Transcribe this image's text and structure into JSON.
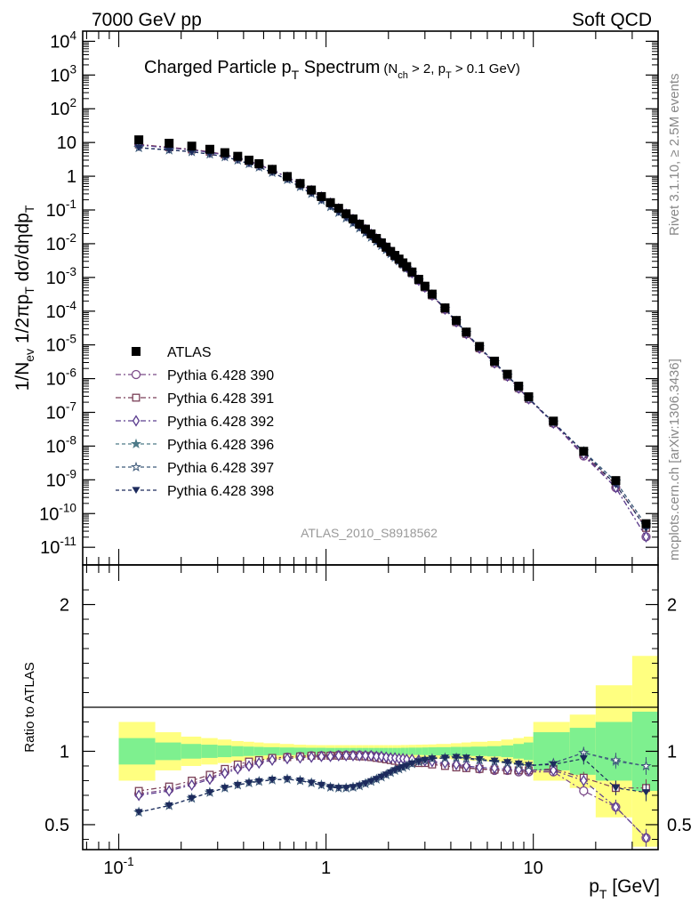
{
  "header": {
    "left": "7000 GeV pp",
    "right": "Soft QCD"
  },
  "side_texts": {
    "rivet": "Rivet 3.1.10, ≥ 2.5M events",
    "mcplots": "mcplots.cern.ch [arXiv:1306.3436]"
  },
  "colors": {
    "band_inner": "#7ef08f",
    "band_outer": "#ffff80",
    "data": "#000000",
    "p390": "#7b4a88",
    "p391": "#7a3f57",
    "p392": "#5b3d8f",
    "p396": "#4d7a88",
    "p397": "#3f5a7a",
    "p398": "#1c2a5c"
  },
  "chart_data": [
    {
      "type": "scatter",
      "title": "Charged Particle p_T Spectrum",
      "title_cut": "(N_ch > 2, p_T > 0.1 GeV)",
      "watermark": "ATLAS_2010_S8918562",
      "ylabel": "1/N_ev 1/2πp_T dσ/dηdp_T",
      "xscale": "log",
      "yscale": "log",
      "xlim": [
        0.067,
        40
      ],
      "ylim": [
        3e-12,
        20000
      ],
      "y_ticks": [
        {
          "v": 10000.0,
          "l": "10^4"
        },
        {
          "v": 1000.0,
          "l": "10^3"
        },
        {
          "v": 100.0,
          "l": "10^2"
        },
        {
          "v": 10,
          "l": "10"
        },
        {
          "v": 1,
          "l": "1"
        },
        {
          "v": 0.1,
          "l": "10^-1"
        },
        {
          "v": 0.01,
          "l": "10^-2"
        },
        {
          "v": 0.001,
          "l": "10^-3"
        },
        {
          "v": 0.0001,
          "l": "10^-4"
        },
        {
          "v": 1e-05,
          "l": "10^-5"
        },
        {
          "v": 1e-06,
          "l": "10^-6"
        },
        {
          "v": 1e-07,
          "l": "10^-7"
        },
        {
          "v": 1e-08,
          "l": "10^-8"
        },
        {
          "v": 1e-09,
          "l": "10^-9"
        },
        {
          "v": 1e-10,
          "l": "10^-10"
        },
        {
          "v": 1e-11,
          "l": "10^-11"
        }
      ],
      "x": [
        0.125,
        0.175,
        0.225,
        0.275,
        0.325,
        0.375,
        0.425,
        0.475,
        0.55,
        0.65,
        0.75,
        0.85,
        0.95,
        1.05,
        1.15,
        1.25,
        1.35,
        1.45,
        1.55,
        1.65,
        1.75,
        1.85,
        1.95,
        2.05,
        2.15,
        2.25,
        2.35,
        2.45,
        2.6,
        2.8,
        3.0,
        3.25,
        3.75,
        4.25,
        4.75,
        5.5,
        6.5,
        7.5,
        8.5,
        9.5,
        12.5,
        17.5,
        25,
        35
      ],
      "data_y": [
        12,
        9.5,
        7.8,
        6.3,
        5.0,
        3.9,
        3.0,
        2.35,
        1.6,
        0.98,
        0.61,
        0.39,
        0.25,
        0.165,
        0.112,
        0.077,
        0.054,
        0.038,
        0.027,
        0.0195,
        0.0143,
        0.0106,
        0.0079,
        0.0059,
        0.0045,
        0.0035,
        0.0027,
        0.0021,
        0.00145,
        0.00088,
        0.00055,
        0.00032,
        0.000125,
        5.3e-05,
        2.4e-05,
        9e-06,
        3.3e-06,
        1.35e-06,
        6e-07,
        2.9e-07,
        5.5e-08,
        7e-09,
        9.5e-10,
        5e-11
      ],
      "series": [
        {
          "name": "Pythia 6.428 390",
          "color": "#7b4a88",
          "marker": "circle-open",
          "dash": "6,3,2,3",
          "ratio": [
            0.71,
            0.74,
            0.78,
            0.82,
            0.86,
            0.89,
            0.91,
            0.93,
            0.95,
            0.96,
            0.965,
            0.97,
            0.97,
            0.97,
            0.975,
            0.975,
            0.975,
            0.975,
            0.97,
            0.97,
            0.965,
            0.96,
            0.955,
            0.95,
            0.945,
            0.94,
            0.935,
            0.93,
            0.93,
            0.93,
            0.925,
            0.92,
            0.91,
            0.9,
            0.89,
            0.88,
            0.87,
            0.87,
            0.86,
            0.86,
            0.86,
            0.73,
            0.62,
            0.41
          ],
          "err": [
            0,
            0,
            0,
            0,
            0,
            0,
            0,
            0,
            0,
            0,
            0,
            0,
            0,
            0,
            0,
            0,
            0,
            0,
            0,
            0,
            0,
            0,
            0,
            0,
            0,
            0,
            0,
            0,
            0,
            0,
            0,
            0,
            0,
            0,
            0,
            0,
            0,
            0,
            0,
            0.01,
            0.02,
            0.04,
            0.05,
            0.06
          ]
        },
        {
          "name": "Pythia 6.428 391",
          "color": "#7a3f57",
          "marker": "square-open",
          "dash": "6,3,2,3",
          "ratio": [
            0.73,
            0.76,
            0.8,
            0.84,
            0.88,
            0.91,
            0.93,
            0.94,
            0.955,
            0.96,
            0.965,
            0.97,
            0.97,
            0.97,
            0.97,
            0.97,
            0.97,
            0.965,
            0.965,
            0.96,
            0.955,
            0.95,
            0.945,
            0.94,
            0.935,
            0.93,
            0.93,
            0.925,
            0.925,
            0.92,
            0.92,
            0.91,
            0.9,
            0.89,
            0.885,
            0.88,
            0.875,
            0.87,
            0.87,
            0.87,
            0.88,
            0.82,
            0.75,
            0.75
          ],
          "err": [
            0,
            0,
            0,
            0,
            0,
            0,
            0,
            0,
            0,
            0,
            0,
            0,
            0,
            0,
            0,
            0,
            0,
            0,
            0,
            0,
            0,
            0,
            0,
            0,
            0,
            0,
            0,
            0,
            0,
            0,
            0,
            0,
            0,
            0,
            0,
            0,
            0,
            0,
            0,
            0.01,
            0.02,
            0.04,
            0.05,
            0.06
          ]
        },
        {
          "name": "Pythia 6.428 392",
          "color": "#5b3d8f",
          "marker": "diamond-open",
          "dash": "6,3,2,3",
          "ratio": [
            0.7,
            0.73,
            0.77,
            0.81,
            0.85,
            0.88,
            0.9,
            0.92,
            0.94,
            0.95,
            0.955,
            0.96,
            0.965,
            0.965,
            0.97,
            0.97,
            0.97,
            0.97,
            0.97,
            0.97,
            0.965,
            0.965,
            0.96,
            0.955,
            0.955,
            0.95,
            0.95,
            0.945,
            0.945,
            0.94,
            0.935,
            0.93,
            0.92,
            0.91,
            0.9,
            0.89,
            0.885,
            0.88,
            0.875,
            0.87,
            0.87,
            0.8,
            0.62,
            0.41
          ],
          "err": [
            0,
            0,
            0,
            0,
            0,
            0,
            0,
            0,
            0,
            0,
            0,
            0,
            0,
            0,
            0,
            0,
            0,
            0,
            0,
            0,
            0,
            0,
            0,
            0,
            0,
            0,
            0,
            0,
            0,
            0,
            0,
            0,
            0,
            0,
            0,
            0,
            0,
            0,
            0,
            0.01,
            0.02,
            0.04,
            0.05,
            0.06
          ]
        },
        {
          "name": "Pythia 6.428 396",
          "color": "#4d7a88",
          "marker": "star-filled",
          "dash": "4,3",
          "ratio": [
            0.585,
            0.63,
            0.68,
            0.72,
            0.75,
            0.77,
            0.785,
            0.795,
            0.805,
            0.81,
            0.8,
            0.785,
            0.77,
            0.755,
            0.75,
            0.75,
            0.755,
            0.765,
            0.78,
            0.795,
            0.81,
            0.825,
            0.84,
            0.855,
            0.87,
            0.88,
            0.89,
            0.9,
            0.915,
            0.93,
            0.94,
            0.95,
            0.955,
            0.955,
            0.95,
            0.94,
            0.93,
            0.92,
            0.91,
            0.9,
            0.92,
            0.99,
            0.93,
            0.9
          ],
          "err": [
            0,
            0,
            0,
            0,
            0,
            0,
            0,
            0,
            0,
            0,
            0,
            0,
            0,
            0,
            0,
            0,
            0,
            0,
            0,
            0,
            0,
            0,
            0,
            0,
            0,
            0,
            0,
            0,
            0,
            0,
            0,
            0,
            0,
            0,
            0,
            0,
            0,
            0,
            0,
            0.01,
            0.02,
            0.04,
            0.05,
            0.06
          ]
        },
        {
          "name": "Pythia 6.428 397",
          "color": "#3f5a7a",
          "marker": "star-open",
          "dash": "4,3",
          "ratio": [
            0.585,
            0.63,
            0.68,
            0.72,
            0.75,
            0.77,
            0.785,
            0.795,
            0.805,
            0.81,
            0.8,
            0.785,
            0.77,
            0.755,
            0.75,
            0.75,
            0.755,
            0.765,
            0.78,
            0.795,
            0.81,
            0.825,
            0.84,
            0.855,
            0.87,
            0.88,
            0.89,
            0.9,
            0.915,
            0.93,
            0.94,
            0.95,
            0.955,
            0.955,
            0.95,
            0.94,
            0.93,
            0.92,
            0.91,
            0.9,
            0.92,
            0.99,
            0.94,
            0.9
          ],
          "err": [
            0,
            0,
            0,
            0,
            0,
            0,
            0,
            0,
            0,
            0,
            0,
            0,
            0,
            0,
            0,
            0,
            0,
            0,
            0,
            0,
            0,
            0,
            0,
            0,
            0,
            0,
            0,
            0,
            0,
            0,
            0,
            0,
            0,
            0,
            0,
            0,
            0,
            0,
            0,
            0.01,
            0.02,
            0.04,
            0.05,
            0.06
          ]
        },
        {
          "name": "Pythia 6.428 398",
          "color": "#1c2a5c",
          "marker": "triangle-down",
          "dash": "4,3",
          "ratio": [
            0.585,
            0.63,
            0.68,
            0.72,
            0.75,
            0.77,
            0.785,
            0.795,
            0.805,
            0.81,
            0.8,
            0.785,
            0.77,
            0.755,
            0.75,
            0.75,
            0.755,
            0.765,
            0.78,
            0.795,
            0.81,
            0.825,
            0.84,
            0.855,
            0.87,
            0.88,
            0.89,
            0.9,
            0.915,
            0.93,
            0.94,
            0.95,
            0.955,
            0.96,
            0.955,
            0.945,
            0.935,
            0.925,
            0.915,
            0.905,
            0.91,
            0.95,
            0.75,
            0.72
          ],
          "err": [
            0,
            0,
            0,
            0,
            0,
            0,
            0,
            0,
            0,
            0,
            0,
            0,
            0,
            0,
            0,
            0,
            0,
            0,
            0,
            0,
            0,
            0,
            0,
            0,
            0,
            0,
            0,
            0,
            0,
            0,
            0,
            0,
            0,
            0,
            0,
            0,
            0,
            0,
            0,
            0.01,
            0.02,
            0.04,
            0.05,
            0.06
          ]
        }
      ],
      "legend": {
        "data_label": "ATLAS",
        "placement": "lower-left"
      }
    },
    {
      "type": "scatter",
      "ylabel": "Ratio to ATLAS",
      "xlabel": "p_T [GeV]",
      "xscale": "log",
      "xlim": [
        0.067,
        40
      ],
      "ylim": [
        0.33,
        2.27
      ],
      "y_ticks": [
        {
          "v": 0.5,
          "l": "0.5"
        },
        {
          "v": 1,
          "l": "1"
        },
        {
          "v": 2,
          "l": "2"
        }
      ],
      "x_ticks": [
        {
          "v": 0.1,
          "l": "10^-1"
        },
        {
          "v": 1,
          "l": "1"
        },
        {
          "v": 10,
          "l": "10"
        }
      ],
      "bands": {
        "x_edges": [
          0.1,
          0.15,
          0.2,
          0.25,
          0.3,
          0.35,
          0.4,
          0.45,
          0.5,
          0.6,
          0.7,
          0.8,
          0.9,
          1.0,
          1.1,
          1.2,
          1.3,
          1.4,
          1.5,
          1.6,
          1.7,
          1.8,
          1.9,
          2.0,
          2.1,
          2.2,
          2.3,
          2.4,
          2.5,
          2.7,
          2.9,
          3.1,
          3.4,
          4.0,
          4.5,
          5.0,
          6.0,
          7.0,
          8.0,
          9.0,
          10.0,
          15.0,
          20.0,
          30.0,
          40.0
        ],
        "inner_half": [
          0.09,
          0.06,
          0.05,
          0.045,
          0.04,
          0.035,
          0.032,
          0.03,
          0.028,
          0.026,
          0.025,
          0.024,
          0.024,
          0.023,
          0.023,
          0.023,
          0.023,
          0.023,
          0.023,
          0.023,
          0.023,
          0.023,
          0.023,
          0.023,
          0.023,
          0.023,
          0.024,
          0.024,
          0.025,
          0.025,
          0.026,
          0.027,
          0.028,
          0.03,
          0.03,
          0.032,
          0.035,
          0.04,
          0.05,
          0.06,
          0.13,
          0.16,
          0.2,
          0.27
        ],
        "outer_half": [
          0.2,
          0.13,
          0.1,
          0.09,
          0.08,
          0.07,
          0.065,
          0.06,
          0.055,
          0.05,
          0.045,
          0.043,
          0.042,
          0.042,
          0.042,
          0.042,
          0.042,
          0.042,
          0.042,
          0.042,
          0.042,
          0.042,
          0.042,
          0.042,
          0.042,
          0.042,
          0.043,
          0.043,
          0.044,
          0.045,
          0.046,
          0.047,
          0.05,
          0.055,
          0.06,
          0.065,
          0.07,
          0.08,
          0.09,
          0.1,
          0.2,
          0.25,
          0.45,
          0.65
        ]
      }
    }
  ]
}
